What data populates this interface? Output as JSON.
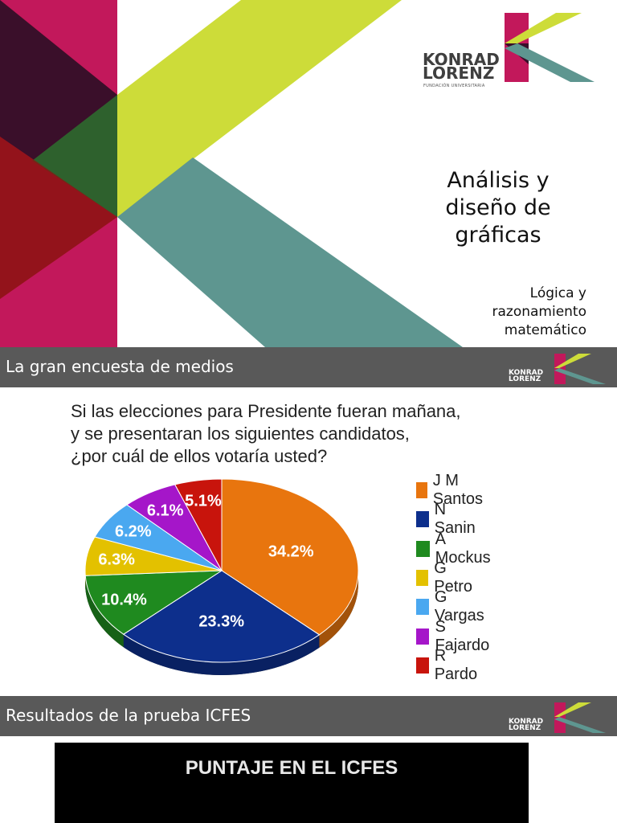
{
  "slide1": {
    "title_lines": [
      "Análisis y",
      "diseño de",
      "gráficas"
    ],
    "subtitle_lines": [
      "Lógica y",
      "razonamiento",
      "matemático"
    ],
    "logo": {
      "line1": "KONRAD",
      "line2": "LORENZ",
      "tagline": "FUNDACIÓN UNIVERSITARIA"
    },
    "colors": {
      "magenta": "#c2185b",
      "lime": "#cddc39",
      "teal": "#5e9690",
      "dark": "#4a1030"
    }
  },
  "slide2": {
    "header": "La gran encuesta de medios",
    "question_lines": [
      "Si las elecciones para Presidente fueran mañana,",
      "y se presentaran los siguientes candidatos,",
      "¿por cuál de ellos votaría usted?"
    ],
    "chart_data": {
      "type": "pie",
      "title": "",
      "categories": [
        "J M Santos",
        "N Sanin",
        "A Mockus",
        "G Petro",
        "G Vargas",
        "S Fajardo",
        "R Pardo"
      ],
      "values": [
        34.2,
        23.3,
        10.4,
        6.3,
        6.2,
        6.1,
        5.1
      ],
      "labels": [
        "34.2%",
        "23.3%",
        "10.4%",
        "6.3%",
        "6.2%",
        "6.1%",
        "5.1%"
      ],
      "colors": [
        "#e8750e",
        "#0d2f8c",
        "#1f8a1f",
        "#e3c100",
        "#4aa8f0",
        "#a516c9",
        "#c8140c"
      ],
      "legend": "right"
    }
  },
  "slide3": {
    "header": "Resultados de la prueba ICFES",
    "chart_title": "PUNTAJE EN EL ICFES"
  }
}
